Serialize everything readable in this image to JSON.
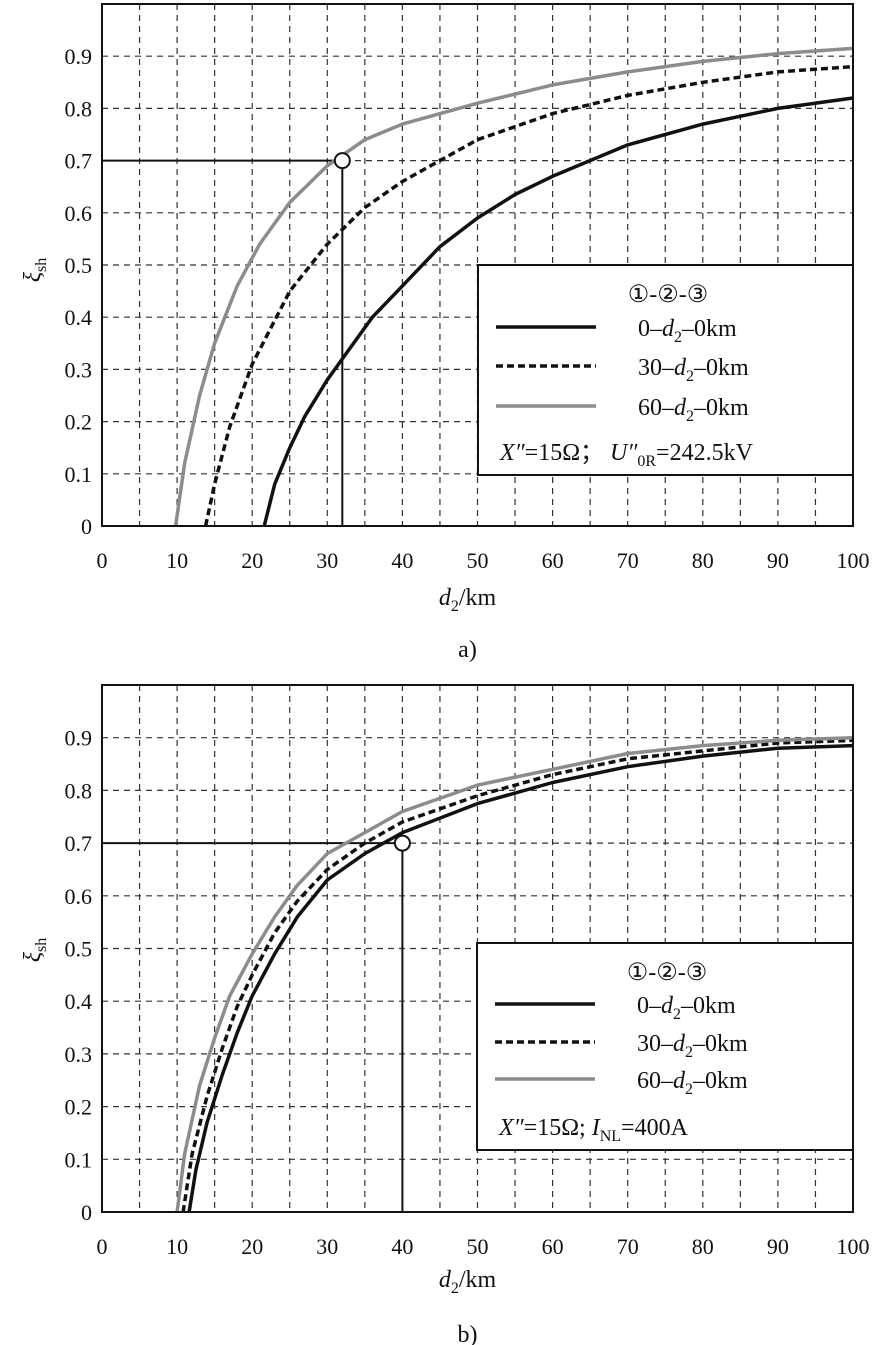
{
  "chart_data": [
    {
      "type": "line",
      "caption": "a)",
      "xlabel": {
        "var": "d",
        "sub": "2",
        "unit": "/km"
      },
      "ylabel": {
        "var": "ξ",
        "sub": "sh"
      },
      "xlim": [
        0,
        100
      ],
      "ylim": [
        0,
        1.0
      ],
      "x_ticks": [
        "0",
        "10",
        "20",
        "30",
        "40",
        "50",
        "60",
        "70",
        "80",
        "90",
        "100"
      ],
      "y_ticks": [
        "0",
        "0.1",
        "0.2",
        "0.3",
        "0.4",
        "0.5",
        "0.6",
        "0.7",
        "0.8",
        "0.9"
      ],
      "grid": true,
      "legend_title": "①-②-③",
      "series": [
        {
          "name": "0–d2–0km",
          "label_pre": "0–",
          "label_post": "–0km",
          "style": "solid",
          "color": "#111111",
          "x": [
            21.6,
            23,
            25,
            27,
            30,
            33,
            36,
            40,
            45,
            50,
            55,
            60,
            70,
            80,
            90,
            100
          ],
          "y": [
            0.0,
            0.08,
            0.15,
            0.21,
            0.28,
            0.34,
            0.4,
            0.46,
            0.535,
            0.59,
            0.635,
            0.67,
            0.73,
            0.77,
            0.8,
            0.82
          ]
        },
        {
          "name": "30–d2–0km",
          "label_pre": "30–",
          "label_post": "–0km",
          "style": "dashed",
          "color": "#111111",
          "x": [
            13.8,
            15,
            17,
            20,
            25,
            30,
            35,
            40,
            45,
            50,
            60,
            70,
            80,
            90,
            100
          ],
          "y": [
            0.0,
            0.08,
            0.19,
            0.31,
            0.45,
            0.54,
            0.61,
            0.66,
            0.7,
            0.74,
            0.79,
            0.825,
            0.85,
            0.87,
            0.88
          ]
        },
        {
          "name": "60–d2–0km",
          "label_pre": "60–",
          "label_post": "–0km",
          "style": "solid",
          "color": "#8c8c8c",
          "x": [
            9.8,
            11,
            13,
            15,
            18,
            21,
            25,
            30,
            35,
            40,
            50,
            60,
            70,
            80,
            90,
            100
          ],
          "y": [
            0.0,
            0.12,
            0.25,
            0.35,
            0.46,
            0.54,
            0.62,
            0.69,
            0.74,
            0.77,
            0.81,
            0.845,
            0.87,
            0.89,
            0.905,
            0.915
          ]
        }
      ],
      "marker": {
        "x": 32,
        "y": 0.7
      },
      "note": {
        "part1_var": "X″",
        "part1_rest": "=15Ω；",
        "part2_var": "U″",
        "part2_sub": "0R",
        "part2_rest": "=242.5kV"
      }
    },
    {
      "type": "line",
      "caption": "b)",
      "xlabel": {
        "var": "d",
        "sub": "2",
        "unit": "/km"
      },
      "ylabel": {
        "var": "ξ",
        "sub": "sh"
      },
      "xlim": [
        0,
        100
      ],
      "ylim": [
        0,
        1.0
      ],
      "x_ticks": [
        "0",
        "10",
        "20",
        "30",
        "40",
        "50",
        "60",
        "70",
        "80",
        "90",
        "100"
      ],
      "y_ticks": [
        "0",
        "0.1",
        "0.2",
        "0.3",
        "0.4",
        "0.5",
        "0.6",
        "0.7",
        "0.8",
        "0.9"
      ],
      "grid": true,
      "legend_title": "①-②-③",
      "series": [
        {
          "name": "0–d2–0km",
          "label_pre": "0–",
          "label_post": "–0km",
          "style": "solid",
          "color": "#111111",
          "x": [
            11.6,
            12.5,
            14,
            16,
            18,
            20,
            23,
            26,
            30,
            35,
            40,
            50,
            60,
            70,
            80,
            90,
            100
          ],
          "y": [
            0.0,
            0.08,
            0.17,
            0.26,
            0.34,
            0.41,
            0.49,
            0.56,
            0.63,
            0.68,
            0.72,
            0.775,
            0.815,
            0.845,
            0.865,
            0.88,
            0.885
          ]
        },
        {
          "name": "30–d2–0km",
          "label_pre": "30–",
          "label_post": "–0km",
          "style": "dashed",
          "color": "#111111",
          "x": [
            10.8,
            12,
            14,
            16,
            18,
            20,
            23,
            26,
            30,
            35,
            40,
            50,
            60,
            70,
            80,
            90,
            100
          ],
          "y": [
            0.0,
            0.11,
            0.22,
            0.31,
            0.39,
            0.45,
            0.53,
            0.59,
            0.65,
            0.7,
            0.74,
            0.79,
            0.83,
            0.86,
            0.875,
            0.89,
            0.895
          ]
        },
        {
          "name": "60–d2–0km",
          "label_pre": "60–",
          "label_post": "–0km",
          "style": "solid",
          "color": "#8c8c8c",
          "x": [
            10.0,
            11,
            13,
            15,
            17,
            20,
            23,
            26,
            30,
            35,
            40,
            50,
            60,
            70,
            80,
            90,
            100
          ],
          "y": [
            0.0,
            0.11,
            0.24,
            0.33,
            0.41,
            0.49,
            0.56,
            0.62,
            0.68,
            0.72,
            0.76,
            0.81,
            0.84,
            0.87,
            0.885,
            0.895,
            0.9
          ]
        }
      ],
      "marker": {
        "x": 40,
        "y": 0.7
      },
      "note": {
        "part1_var": "X″",
        "part1_rest": "=15Ω; ",
        "part2_var": "I",
        "part2_sub": "NL",
        "part2_rest": "=400A"
      }
    }
  ]
}
